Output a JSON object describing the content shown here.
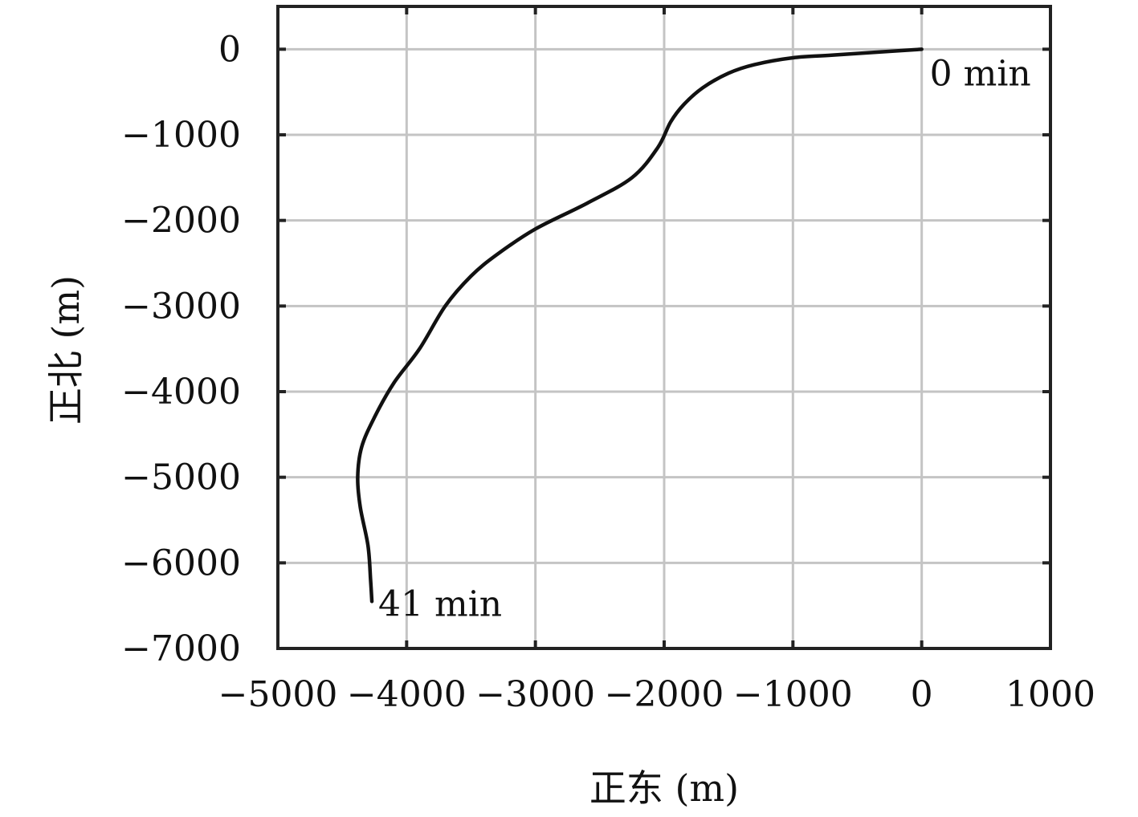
{
  "chart_data": {
    "type": "line",
    "title": "",
    "xlabel": "正东 (m)",
    "ylabel": "正北 (m)",
    "xlim": [
      -5000,
      1000
    ],
    "ylim": [
      -7000,
      500
    ],
    "xticks": [
      -5000,
      -4000,
      -3000,
      -2000,
      -1000,
      0,
      1000
    ],
    "yticks": [
      0,
      -1000,
      -2000,
      -3000,
      -4000,
      -5000,
      -6000,
      -7000
    ],
    "xtick_labels": [
      "−5000",
      "−4000",
      "−3000",
      "−2000",
      "−1000",
      "0",
      "1000"
    ],
    "ytick_labels": [
      "0",
      "−1000",
      "−2000",
      "−3000",
      "−4000",
      "−5000",
      "−6000",
      "−7000"
    ],
    "grid": true,
    "series": [
      {
        "x": [
          0,
          -300,
          -700,
          -1000,
          -1300,
          -1500,
          -1700,
          -1850,
          -1950,
          -2050,
          -2250,
          -2600,
          -3000,
          -3300,
          -3500,
          -3700,
          -3900,
          -4100,
          -4250,
          -4350,
          -4380,
          -4360,
          -4300,
          -4280,
          -4270
        ],
        "y": [
          0,
          -30,
          -70,
          -100,
          -180,
          -280,
          -450,
          -650,
          -850,
          -1150,
          -1500,
          -1800,
          -2100,
          -2400,
          -2650,
          -3000,
          -3500,
          -3900,
          -4300,
          -4650,
          -5000,
          -5350,
          -5800,
          -6200,
          -6450
        ]
      }
    ],
    "color": "#111111",
    "annotations": [
      {
        "text": "0 min",
        "x": 0,
        "y": 0
      },
      {
        "text": "41 min",
        "x": -4270,
        "y": -6450
      }
    ]
  }
}
